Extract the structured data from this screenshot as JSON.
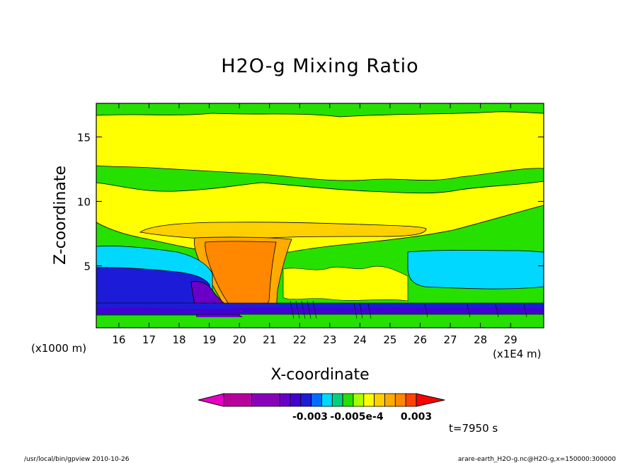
{
  "chart_data": {
    "type": "heatmap",
    "title": "H2O-g Mixing Ratio",
    "xlabel": "X-coordinate",
    "ylabel": "Z-coordinate",
    "x_unit_left": "(x1000 m)",
    "x_unit_right": "(x1E4 m)",
    "xlim": [
      15.25,
      30.1
    ],
    "ylim": [
      0.2,
      17.6
    ],
    "x_ticks": [
      16,
      17,
      18,
      19,
      20,
      21,
      22,
      23,
      24,
      25,
      26,
      27,
      28,
      29
    ],
    "y_ticks": [
      5,
      10,
      15
    ],
    "colorbar": {
      "colors": [
        "#e800c8",
        "#b8009c",
        "#8a00b8",
        "#6a00c8",
        "#4400d0",
        "#1c1cd8",
        "#006cff",
        "#00d8ff",
        "#00d080",
        "#26e000",
        "#a8ff00",
        "#ffff00",
        "#ffd000",
        "#ffaa00",
        "#ff8800",
        "#ff4400",
        "#ff0000"
      ],
      "labels": [
        "-0.003",
        "-0.005e-4",
        "0.003"
      ]
    },
    "annotation_time": "t=7950 s",
    "footer_left": "/usr/local/bin/gpview  2010-10-26",
    "footer_right": "arare-earth_H2O-g.nc@H2O-g,x=150000:300000"
  }
}
